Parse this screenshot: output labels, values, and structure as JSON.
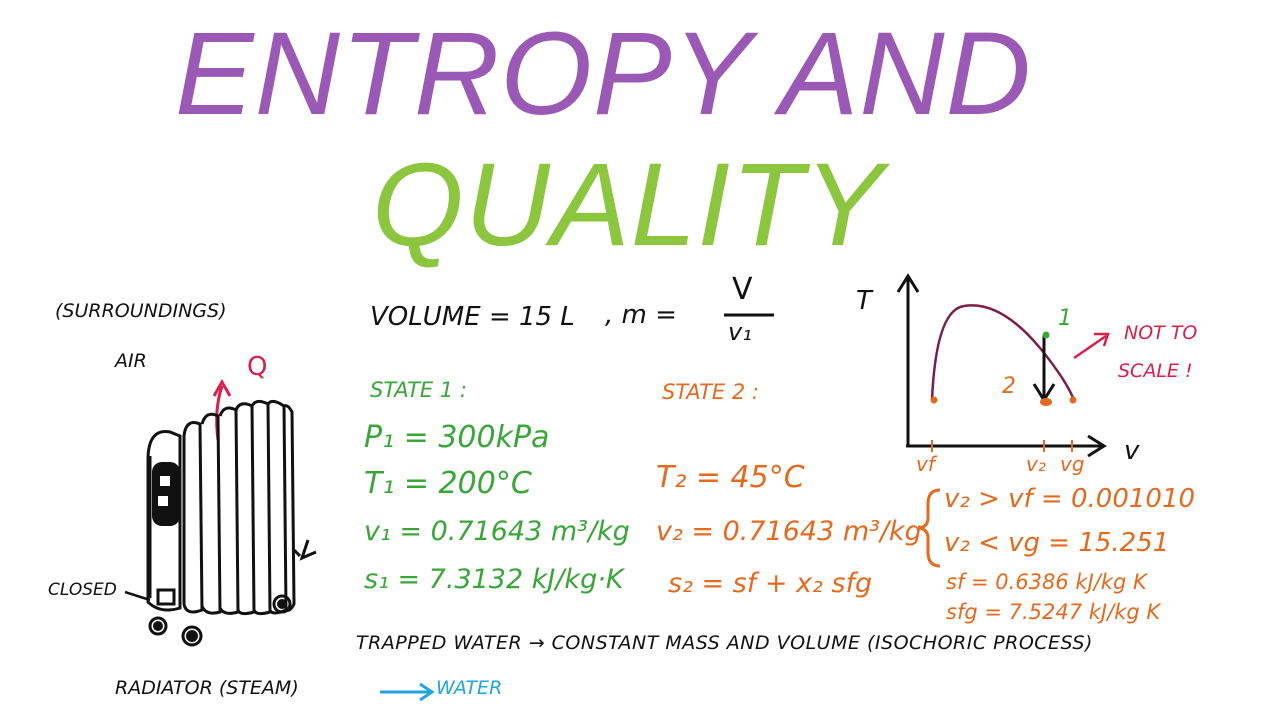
{
  "title": {
    "line1": "ENTROPY AND",
    "line2": "QUALITY",
    "line1_color": "#9b59b6",
    "line2_color": "#8cc63f"
  },
  "colors": {
    "black": "#111111",
    "green": "#3aa63a",
    "orange": "#e36a1e",
    "red": "#d8204a",
    "blue": "#22a4dc",
    "purple_curve": "#7a1e4a"
  },
  "left": {
    "surroundings": "(SURROUNDINGS)",
    "air": "AIR",
    "q": "Q",
    "closed": "CLOSED",
    "radiator": "RADIATOR (STEAM)",
    "water": "WATER"
  },
  "header_eq": {
    "volume": "VOLUME = 15 L",
    "mass": ", m =",
    "numerator": "V",
    "denominator": "v₁"
  },
  "state1": {
    "label": "STATE 1 :",
    "p1": "P₁ = 300kPa",
    "t1": "T₁ = 200°C",
    "v1": "v₁ = 0.71643 m³/kg",
    "s1": "s₁ = 7.3132 kJ/kg·K"
  },
  "state2": {
    "label": "STATE 2 :",
    "t2": "T₂ = 45°C",
    "v2": "v₂ = 0.71643 m³/kg",
    "s2": "s₂ = sf + x₂ sfg",
    "cond1": "v₂ > vf = 0.001010",
    "cond2": "v₂ < vg = 15.251",
    "sf": "sf = 0.6386 kJ/kg K",
    "sfg": "sfg = 7.5247 kJ/kg K"
  },
  "bottom_line": "TRAPPED WATER → CONSTANT MASS AND VOLUME (ISOCHORIC PROCESS)",
  "diagram": {
    "t_axis": "T",
    "v_axis": "v",
    "point1": "1",
    "point2": "2",
    "vf": "vf",
    "v2": "v₂",
    "vg": "vg",
    "note_line1": "NOT TO",
    "note_line2": "SCALE !"
  }
}
